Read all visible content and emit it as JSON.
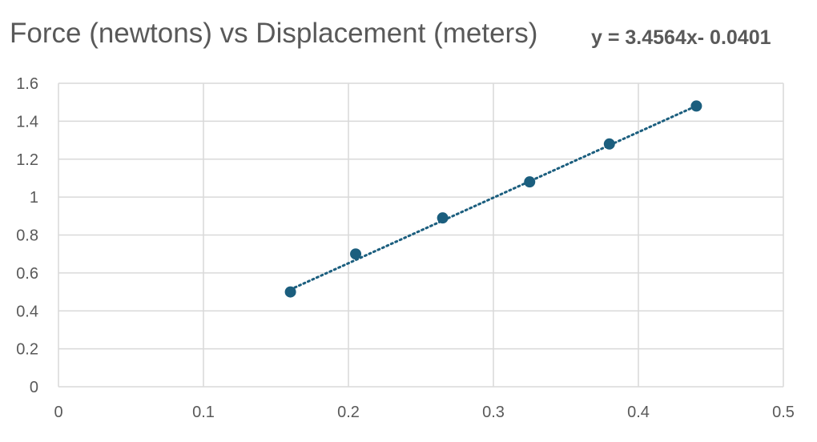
{
  "chart_data": {
    "type": "scatter",
    "title": "Force (newtons) vs Displacement (meters)",
    "xlabel": "",
    "ylabel": "",
    "xlim": [
      0,
      0.5
    ],
    "ylim": [
      0,
      1.6
    ],
    "x_ticks": [
      "0",
      "0.1",
      "0.2",
      "0.3",
      "0.4",
      "0.5"
    ],
    "y_ticks": [
      "0",
      "0.2",
      "0.4",
      "0.6",
      "0.8",
      "1",
      "1.2",
      "1.4",
      "1.6"
    ],
    "grid": true,
    "legend": "none",
    "marker_color": "#1b5e7e",
    "grid_color": "#d9d9d9",
    "points": [
      {
        "x": 0.16,
        "y": 0.5
      },
      {
        "x": 0.205,
        "y": 0.7
      },
      {
        "x": 0.265,
        "y": 0.89
      },
      {
        "x": 0.325,
        "y": 1.08
      },
      {
        "x": 0.38,
        "y": 1.28
      },
      {
        "x": 0.44,
        "y": 1.48
      }
    ],
    "trendline": {
      "type": "linear",
      "style": "dotted",
      "slope": 3.4564,
      "intercept": -0.0401,
      "x_range": [
        0.16,
        0.44
      ],
      "equation_label": "y = 3.4564x- 0.0401"
    }
  }
}
